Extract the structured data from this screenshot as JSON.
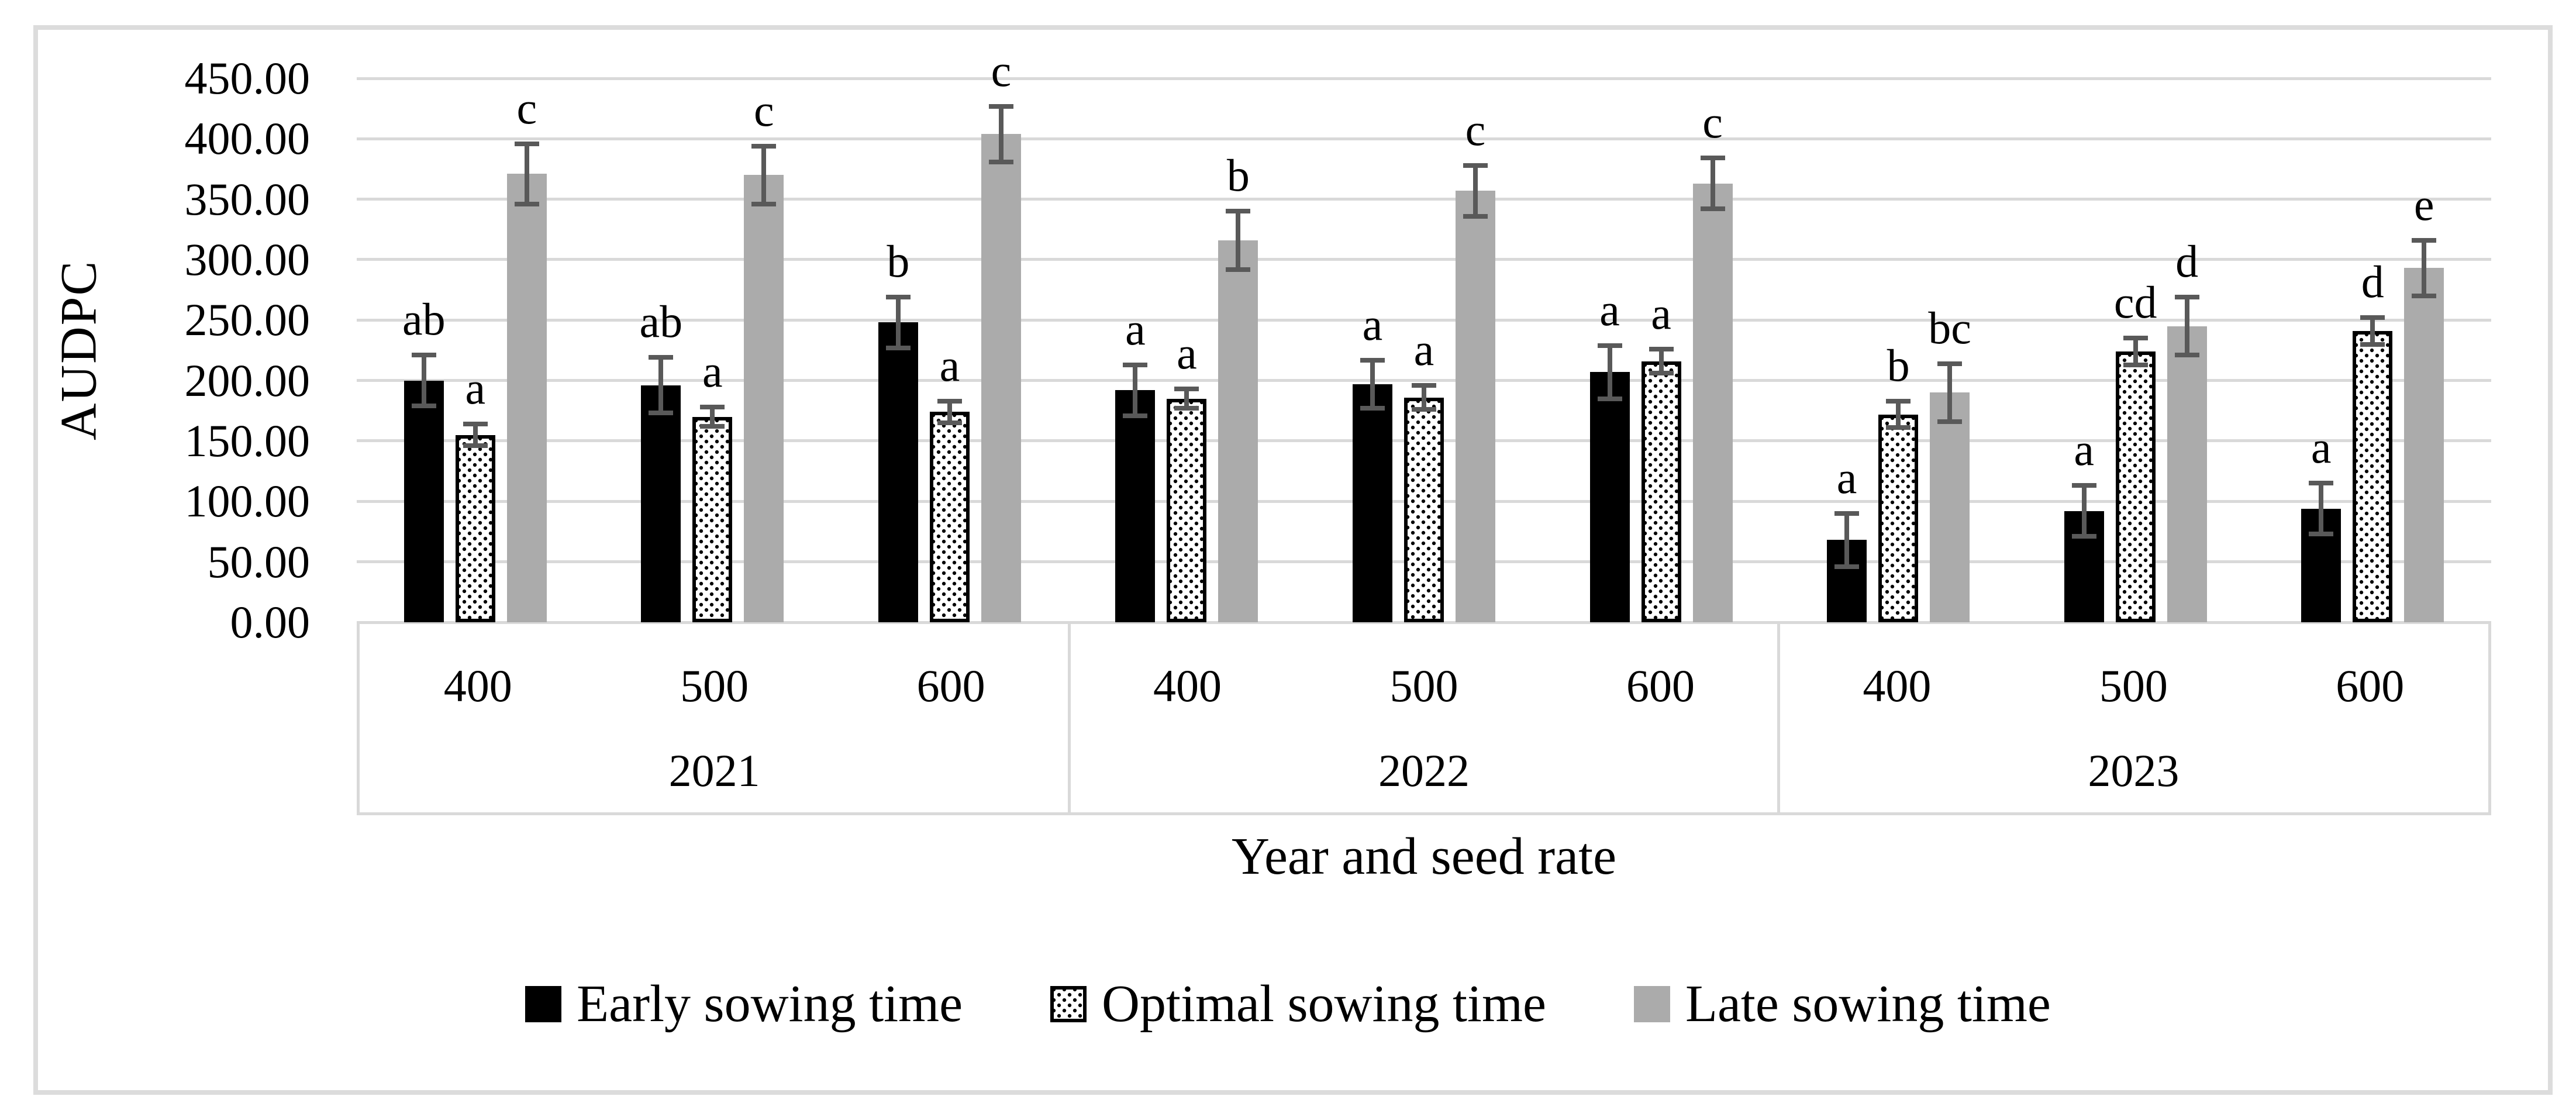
{
  "figure": {
    "ylabel": "AUDPC",
    "xlabel": "Year and seed rate",
    "legend": [
      {
        "key": "early",
        "label": "Early sowing time"
      },
      {
        "key": "optimal",
        "label": "Optimal sowing time"
      },
      {
        "key": "late",
        "label": "Late sowing time"
      }
    ]
  },
  "colors": {
    "early_bar": "#000000",
    "optimal_bar_bg": "#ffffff",
    "optimal_bar_dots": "#000000",
    "late_bar": "#ababab",
    "error_bar": "#595959",
    "gridline": "#d9d9d9",
    "frame_border": "#dcdcdc",
    "text": "#000000"
  },
  "chart_data": {
    "type": "bar",
    "title": "",
    "ylabel": "AUDPC",
    "xlabel": "Year and seed rate",
    "ylim": [
      0,
      450
    ],
    "ytick_step": 50,
    "y_ticks": [
      "450.00",
      "400.00",
      "350.00",
      "300.00",
      "250.00",
      "200.00",
      "150.00",
      "100.00",
      "50.00",
      "0.00"
    ],
    "grid": true,
    "legend_position": "bottom",
    "series_names": [
      "Early sowing time",
      "Optimal sowing time",
      "Late sowing time"
    ],
    "groups": [
      {
        "label": "2021",
        "items": [
          {
            "rate": "400",
            "bars": [
              {
                "series": "early",
                "value": 200,
                "error": 21,
                "letter": "ab"
              },
              {
                "series": "optimal",
                "value": 155,
                "error": 9,
                "letter": "a"
              },
              {
                "series": "late",
                "value": 371,
                "error": 25,
                "letter": "c"
              }
            ]
          },
          {
            "rate": "500",
            "bars": [
              {
                "series": "early",
                "value": 196,
                "error": 23,
                "letter": "ab"
              },
              {
                "series": "optimal",
                "value": 170,
                "error": 8,
                "letter": "a"
              },
              {
                "series": "late",
                "value": 370,
                "error": 24,
                "letter": "c"
              }
            ]
          },
          {
            "rate": "600",
            "bars": [
              {
                "series": "early",
                "value": 248,
                "error": 21,
                "letter": "b"
              },
              {
                "series": "optimal",
                "value": 174,
                "error": 9,
                "letter": "a"
              },
              {
                "series": "late",
                "value": 404,
                "error": 23,
                "letter": "c"
              }
            ]
          }
        ]
      },
      {
        "label": "2022",
        "items": [
          {
            "rate": "400",
            "bars": [
              {
                "series": "early",
                "value": 192,
                "error": 21,
                "letter": "a"
              },
              {
                "series": "optimal",
                "value": 185,
                "error": 8,
                "letter": "a"
              },
              {
                "series": "late",
                "value": 316,
                "error": 24,
                "letter": "b"
              }
            ]
          },
          {
            "rate": "500",
            "bars": [
              {
                "series": "early",
                "value": 197,
                "error": 20,
                "letter": "a"
              },
              {
                "series": "optimal",
                "value": 186,
                "error": 10,
                "letter": "a"
              },
              {
                "series": "late",
                "value": 357,
                "error": 21,
                "letter": "c"
              }
            ]
          },
          {
            "rate": "600",
            "bars": [
              {
                "series": "early",
                "value": 207,
                "error": 22,
                "letter": "a"
              },
              {
                "series": "optimal",
                "value": 216,
                "error": 10,
                "letter": "a"
              },
              {
                "series": "late",
                "value": 363,
                "error": 21,
                "letter": "c"
              }
            ]
          }
        ]
      },
      {
        "label": "2023",
        "items": [
          {
            "rate": "400",
            "bars": [
              {
                "series": "early",
                "value": 68,
                "error": 22,
                "letter": "a"
              },
              {
                "series": "optimal",
                "value": 172,
                "error": 11,
                "letter": "b"
              },
              {
                "series": "late",
                "value": 190,
                "error": 24,
                "letter": "bc"
              }
            ]
          },
          {
            "rate": "500",
            "bars": [
              {
                "series": "early",
                "value": 92,
                "error": 21,
                "letter": "a"
              },
              {
                "series": "optimal",
                "value": 224,
                "error": 11,
                "letter": "cd"
              },
              {
                "series": "late",
                "value": 245,
                "error": 24,
                "letter": "d"
              }
            ]
          },
          {
            "rate": "600",
            "bars": [
              {
                "series": "early",
                "value": 94,
                "error": 21,
                "letter": "a"
              },
              {
                "series": "optimal",
                "value": 241,
                "error": 11,
                "letter": "d"
              },
              {
                "series": "late",
                "value": 293,
                "error": 23,
                "letter": "e"
              }
            ]
          }
        ]
      }
    ]
  }
}
